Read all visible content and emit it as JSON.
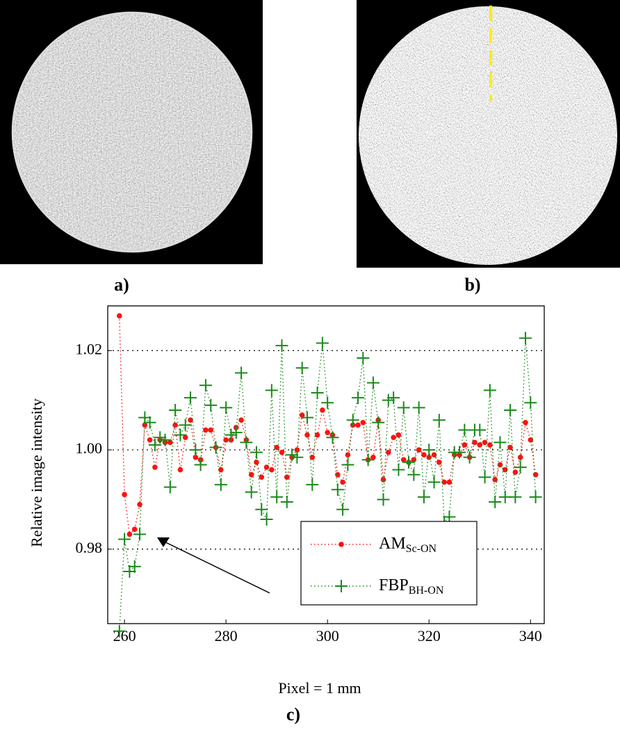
{
  "chart_data": {
    "type": "line",
    "panel_labels": [
      "a)",
      "b)",
      "c)"
    ],
    "xlabel": "Pixel = 1 mm",
    "ylabel": "Relative image intensity",
    "x": [
      259,
      260,
      261,
      262,
      263,
      264,
      265,
      266,
      267,
      268,
      269,
      270,
      271,
      272,
      273,
      274,
      275,
      276,
      277,
      278,
      279,
      280,
      281,
      282,
      283,
      284,
      285,
      286,
      287,
      288,
      289,
      290,
      291,
      292,
      293,
      294,
      295,
      296,
      297,
      298,
      299,
      300,
      301,
      302,
      303,
      304,
      305,
      306,
      307,
      308,
      309,
      310,
      311,
      312,
      313,
      314,
      315,
      316,
      317,
      318,
      319,
      320,
      321,
      322,
      323,
      324,
      325,
      326,
      327,
      328,
      329,
      330,
      331,
      332,
      333,
      334,
      335,
      336,
      337,
      338,
      339,
      340,
      341
    ],
    "series": [
      {
        "name": "AM",
        "name_subscript": "Sc-ON",
        "color": "#ff1010",
        "marker": "dot",
        "values": [
          1.027,
          0.991,
          0.983,
          0.984,
          0.989,
          1.005,
          1.002,
          0.9965,
          1.002,
          1.0015,
          1.0015,
          1.005,
          0.996,
          1.0025,
          1.006,
          0.9985,
          0.998,
          1.004,
          1.004,
          1.0005,
          0.996,
          1.002,
          1.002,
          1.0045,
          1.006,
          1.002,
          0.995,
          0.9975,
          0.9945,
          0.9965,
          0.996,
          1.0005,
          0.9995,
          0.9945,
          0.9985,
          1.0,
          1.007,
          1.003,
          0.9985,
          1.003,
          1.008,
          1.0035,
          1.003,
          0.995,
          0.9935,
          0.999,
          1.005,
          1.005,
          1.0055,
          0.998,
          0.9985,
          1.006,
          0.994,
          0.9995,
          1.0025,
          1.003,
          0.998,
          0.9975,
          0.998,
          1.0,
          0.999,
          0.9985,
          0.999,
          0.9975,
          0.9935,
          0.9935,
          0.999,
          0.999,
          1.001,
          0.9985,
          1.0015,
          1.001,
          1.0015,
          1.001,
          0.994,
          0.997,
          0.996,
          1.0005,
          0.9955,
          0.9985,
          1.0055,
          1.002,
          0.995
        ]
      },
      {
        "name": "FBP",
        "name_subscript": "BH-ON",
        "color": "#1a8a1a",
        "marker": "plus",
        "values": [
          0.9635,
          0.982,
          0.9755,
          0.9765,
          0.983,
          1.0065,
          1.0055,
          1.001,
          1.0025,
          1.002,
          0.9925,
          1.008,
          1.003,
          1.005,
          1.0105,
          1.0,
          0.997,
          1.013,
          1.009,
          1.0005,
          0.993,
          1.0085,
          1.003,
          1.0035,
          1.0155,
          1.0015,
          0.9915,
          0.9995,
          0.988,
          0.986,
          1.012,
          0.9905,
          1.021,
          0.9895,
          0.999,
          0.9985,
          1.0165,
          1.0065,
          0.993,
          1.0115,
          1.0215,
          1.0095,
          1.0025,
          0.992,
          0.988,
          0.997,
          1.006,
          1.0105,
          1.0185,
          0.998,
          1.0135,
          1.0055,
          0.99,
          1.01,
          1.0105,
          0.996,
          1.0085,
          0.9975,
          0.995,
          1.0085,
          0.9905,
          1.0,
          0.9935,
          1.006,
          0.9855,
          0.9865,
          0.9995,
          0.9995,
          1.004,
          0.9985,
          1.004,
          1.004,
          0.9945,
          1.012,
          0.9895,
          1.0015,
          0.9905,
          1.008,
          0.9905,
          0.9965,
          1.0225,
          1.0095,
          0.9905
        ]
      }
    ],
    "xlim": [
      256.7,
      342.7
    ],
    "ylim": [
      0.965,
      1.029
    ],
    "xticks": [
      260,
      280,
      300,
      320,
      340
    ],
    "yticks": [
      0.98,
      {
        "value": 1.0,
        "label": "1.00"
      },
      1.02
    ],
    "grid": true
  }
}
